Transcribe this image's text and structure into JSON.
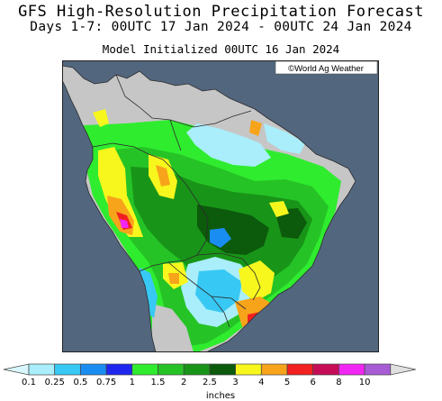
{
  "header": {
    "title": "GFS High-Resolution Precipitation Forecast",
    "subtitle": "Days 1-7: 00UTC 17 Jan 2024 - 00UTC 24 Jan 2024",
    "init": "Model Initialized 00UTC 16 Jan 2024"
  },
  "map": {
    "credit": "©World Ag Weather",
    "region": "South America",
    "ocean_color": "#52667e",
    "land_dry_color": "#c6c6c6",
    "border_color": "#2b2b2b"
  },
  "legend": {
    "unit_label": "inches",
    "ticks": [
      "0.1",
      "0.25",
      "0.5",
      "0.75",
      "1",
      "1.5",
      "2",
      "2.5",
      "3",
      "4",
      "5",
      "6",
      "8",
      "10"
    ],
    "colors": [
      "#a9eefa",
      "#38c8f4",
      "#1a8df2",
      "#1f26ee",
      "#2fec2f",
      "#26c326",
      "#189518",
      "#0c5a0c",
      "#f7f71d",
      "#f7a41b",
      "#f22020",
      "#c70c57",
      "#f226f2",
      "#a75cd6"
    ],
    "end_low_color": "#d8f6fb",
    "end_high_color": "#e0e0e0"
  }
}
